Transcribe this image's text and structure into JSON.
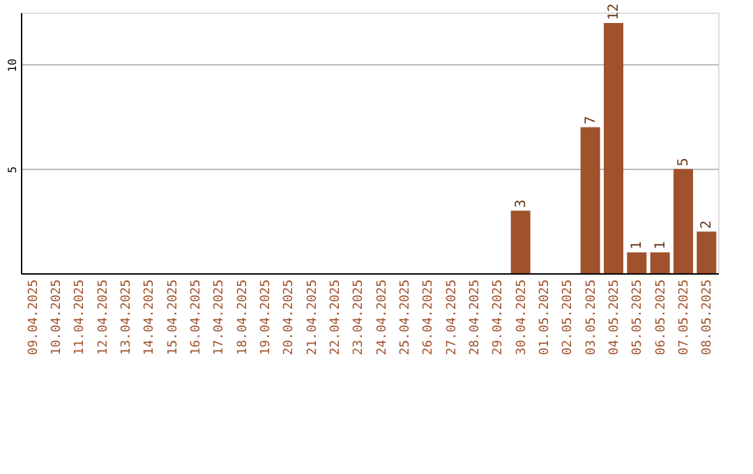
{
  "chart_data": {
    "type": "bar",
    "categories": [
      "09.04.2025",
      "10.04.2025",
      "11.04.2025",
      "12.04.2025",
      "13.04.2025",
      "14.04.2025",
      "15.04.2025",
      "16.04.2025",
      "17.04.2025",
      "18.04.2025",
      "19.04.2025",
      "20.04.2025",
      "21.04.2025",
      "22.04.2025",
      "23.04.2025",
      "24.04.2025",
      "25.04.2025",
      "26.04.2025",
      "27.04.2025",
      "28.04.2025",
      "29.04.2025",
      "30.04.2025",
      "01.05.2025",
      "02.05.2025",
      "03.05.2025",
      "04.05.2025",
      "05.05.2025",
      "06.05.2025",
      "07.05.2025",
      "08.05.2025"
    ],
    "values": [
      0,
      0,
      0,
      0,
      0,
      0,
      0,
      0,
      0,
      0,
      0,
      0,
      0,
      0,
      0,
      0,
      0,
      0,
      0,
      0,
      0,
      3,
      0,
      0,
      7,
      12,
      1,
      1,
      5,
      2
    ],
    "value_labels": [
      null,
      null,
      null,
      null,
      null,
      null,
      null,
      null,
      null,
      null,
      null,
      null,
      null,
      null,
      null,
      null,
      null,
      null,
      null,
      null,
      null,
      "3",
      null,
      null,
      "7",
      "12",
      "1",
      "1",
      "5",
      "2"
    ],
    "color": "#a0522d",
    "ylim": [
      0,
      12.5
    ],
    "yticks": [
      5,
      10
    ],
    "grid": "y"
  }
}
